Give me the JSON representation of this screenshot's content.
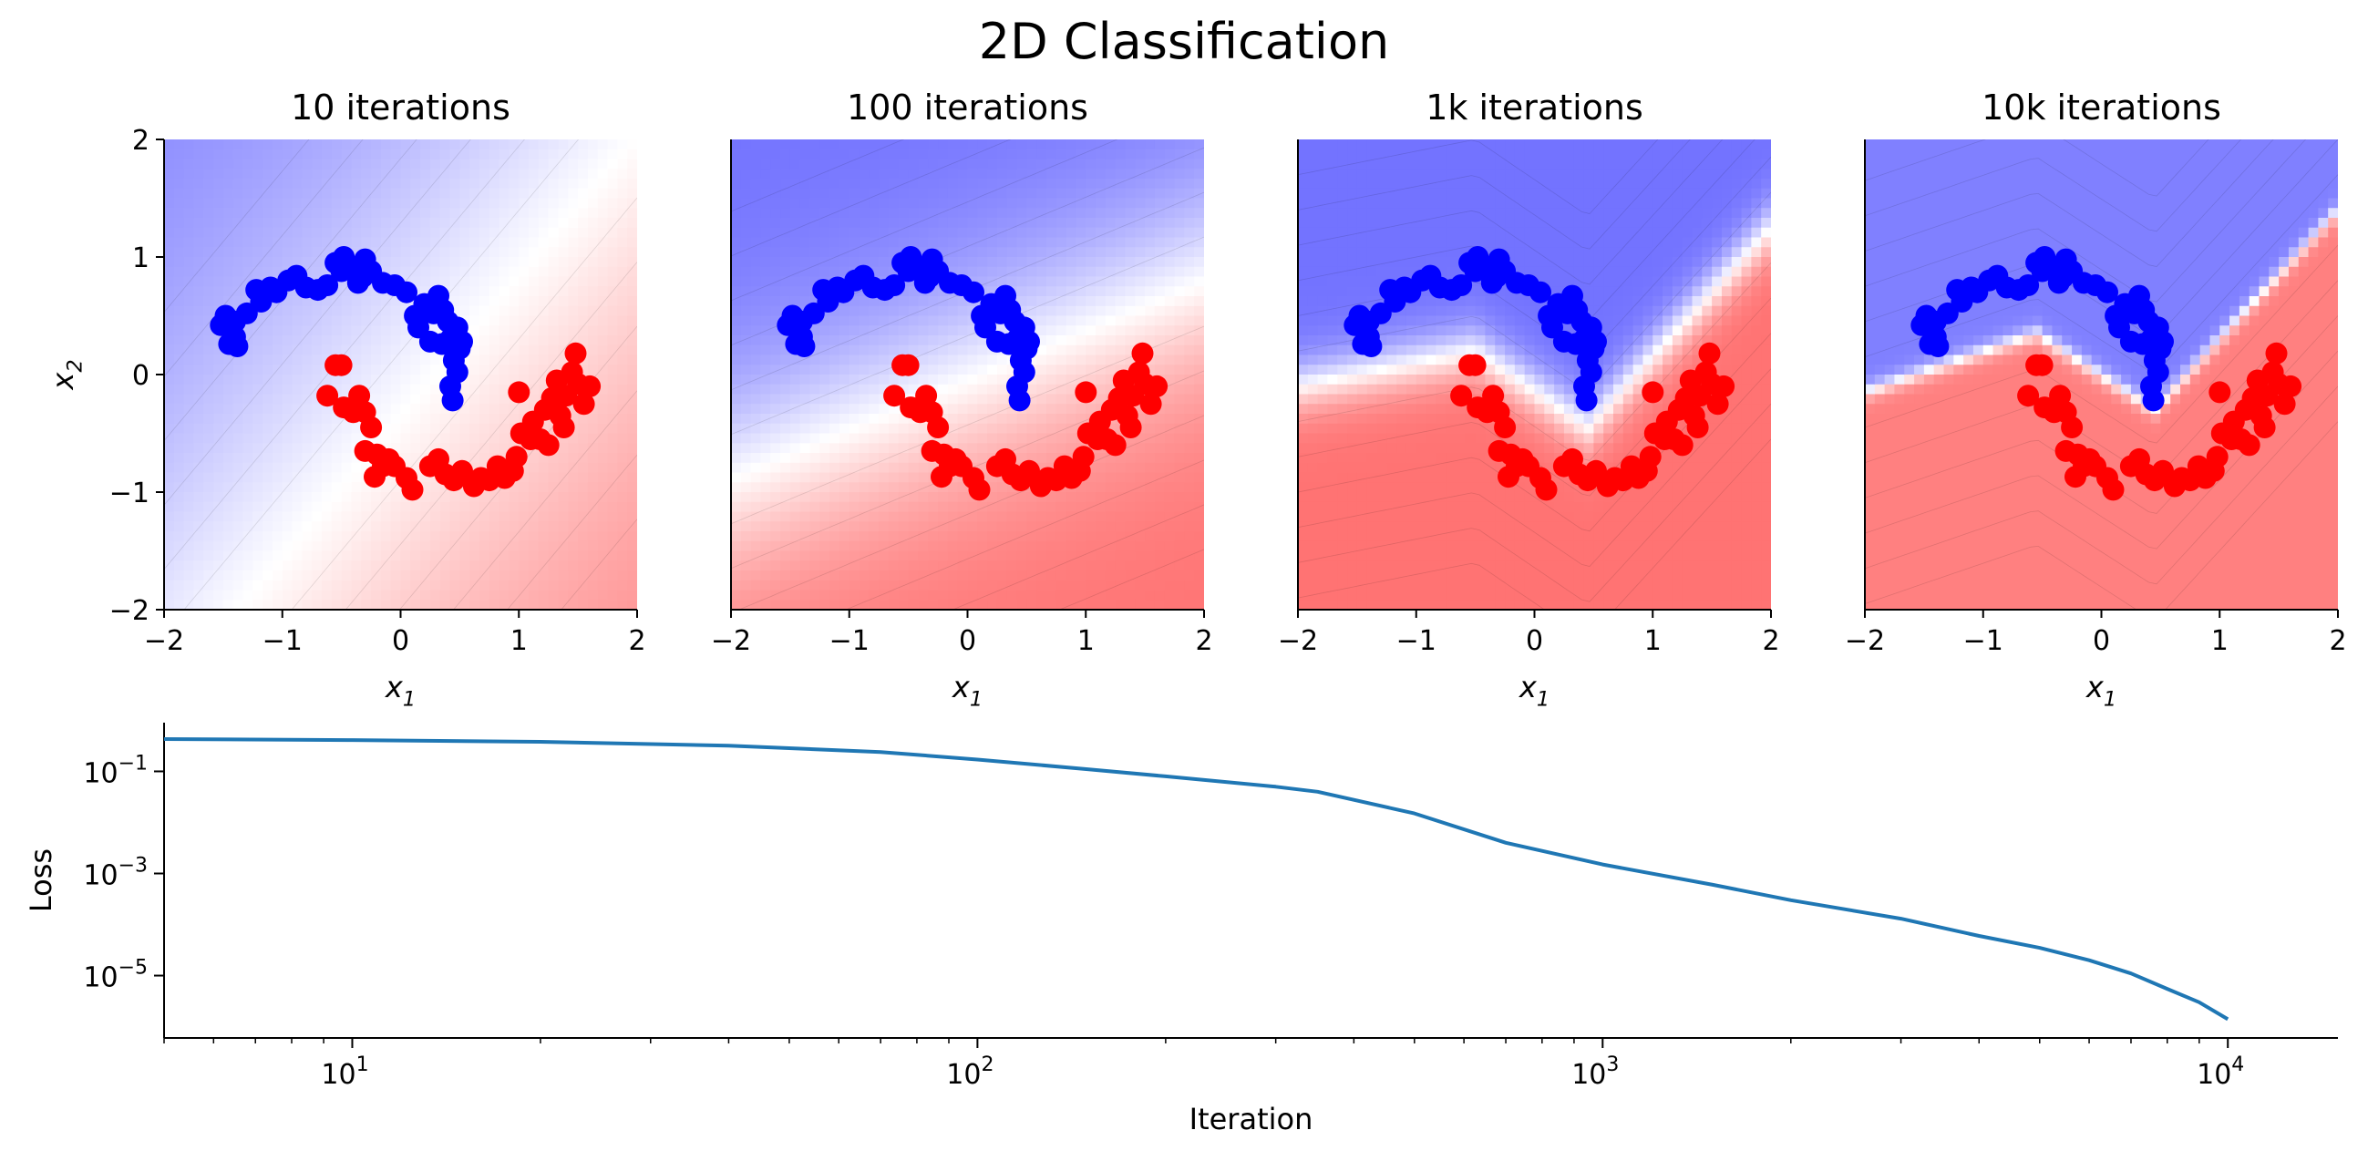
{
  "figure": {
    "suptitle": "2D Classification"
  },
  "chart_data": [
    {
      "type": "heatmap",
      "title": "10 iterations",
      "xlabel": "x1",
      "ylabel": "x2",
      "xlim": [
        -2,
        2
      ],
      "ylim": [
        -2,
        2
      ],
      "xticks": [
        -2,
        -1,
        0,
        1,
        2
      ],
      "yticks": [
        -2,
        -1,
        0,
        1,
        2
      ],
      "colormap": [
        "#0000ff",
        "#ffffff",
        "#ff0000"
      ],
      "boundary": {
        "kind": "linear",
        "slope": 1.2,
        "intercept": -0.35,
        "sharpness": 0.35,
        "max_level": 0.55
      }
    },
    {
      "type": "heatmap",
      "title": "100 iterations",
      "xlabel": "x1",
      "xlim": [
        -2,
        2
      ],
      "ylim": [
        -2,
        2
      ],
      "xticks": [
        -2,
        -1,
        0,
        1,
        2
      ],
      "colormap": [
        "#0000ff",
        "#ffffff",
        "#ff0000"
      ],
      "boundary": {
        "kind": "linear",
        "slope": 0.42,
        "intercept": -0.05,
        "sharpness": 0.9,
        "max_level": 0.55
      }
    },
    {
      "type": "heatmap",
      "title": "1k iterations",
      "xlabel": "x1",
      "xlim": [
        -2,
        2
      ],
      "ylim": [
        -2,
        2
      ],
      "xticks": [
        -2,
        -1,
        0,
        1,
        2
      ],
      "colormap": [
        "#0000ff",
        "#ffffff",
        "#ff0000"
      ],
      "boundary": {
        "kind": "vee",
        "points": [
          [
            -2,
            -0.1
          ],
          [
            -0.5,
            0.2
          ],
          [
            0.45,
            -0.45
          ],
          [
            2,
            1.25
          ]
        ],
        "sharpness": 3.5,
        "max_level": 0.55
      }
    },
    {
      "type": "heatmap",
      "title": "10k iterations",
      "xlabel": "x1",
      "xlim": [
        -2,
        2
      ],
      "ylim": [
        -2,
        2
      ],
      "xticks": [
        -2,
        -1,
        0,
        1,
        2
      ],
      "colormap": [
        "#0000ff",
        "#ffffff",
        "#ff0000"
      ],
      "boundary": {
        "kind": "vee",
        "points": [
          [
            -2,
            -0.15
          ],
          [
            -0.55,
            0.35
          ],
          [
            0.45,
            -0.3
          ],
          [
            2,
            1.4
          ]
        ],
        "sharpness": 12,
        "max_level": 0.5
      }
    },
    {
      "type": "line",
      "xlabel": "Iteration",
      "ylabel": "Loss",
      "xscale": "log",
      "yscale": "log",
      "xlim": [
        5,
        15000
      ],
      "ylim": [
        6e-07,
        0.9
      ],
      "xticks": [
        10,
        100,
        1000,
        10000
      ],
      "yticks": [
        0.1,
        0.001,
        1e-05
      ],
      "series": [
        {
          "color": "#1f77b4",
          "x": [
            5,
            10,
            20,
            40,
            70,
            100,
            150,
            200,
            300,
            350,
            500,
            700,
            1000,
            1500,
            2000,
            3000,
            4000,
            5000,
            6000,
            7000,
            8000,
            9000,
            10000
          ],
          "y": [
            0.43,
            0.41,
            0.38,
            0.32,
            0.24,
            0.17,
            0.11,
            0.08,
            0.05,
            0.04,
            0.015,
            0.004,
            0.0015,
            0.0006,
            0.0003,
            0.00013,
            6e-05,
            3.5e-05,
            2e-05,
            1.1e-05,
            5.5e-06,
            3e-06,
            1.4e-06
          ]
        }
      ]
    }
  ],
  "scatter_points": {
    "blue": {
      "color": "#0000ff",
      "points": [
        [
          -1.52,
          0.42
        ],
        [
          -1.48,
          0.5
        ],
        [
          -1.4,
          0.45
        ],
        [
          -1.45,
          0.26
        ],
        [
          -1.38,
          0.24
        ],
        [
          -1.3,
          0.52
        ],
        [
          -1.22,
          0.72
        ],
        [
          -1.18,
          0.62
        ],
        [
          -1.1,
          0.74
        ],
        [
          -1.05,
          0.7
        ],
        [
          -0.95,
          0.8
        ],
        [
          -0.88,
          0.84
        ],
        [
          -0.8,
          0.74
        ],
        [
          -0.7,
          0.72
        ],
        [
          -0.62,
          0.76
        ],
        [
          -0.5,
          0.88
        ],
        [
          -0.48,
          1.0
        ],
        [
          -0.42,
          0.92
        ],
        [
          -0.36,
          0.78
        ],
        [
          -0.3,
          0.98
        ],
        [
          -0.25,
          0.88
        ],
        [
          -0.32,
          0.83
        ],
        [
          -0.15,
          0.78
        ],
        [
          -0.05,
          0.76
        ],
        [
          0.05,
          0.7
        ],
        [
          0.12,
          0.5
        ],
        [
          0.2,
          0.6
        ],
        [
          0.28,
          0.52
        ],
        [
          0.32,
          0.67
        ],
        [
          0.36,
          0.55
        ],
        [
          0.4,
          0.45
        ],
        [
          0.42,
          0.3
        ],
        [
          0.48,
          0.4
        ],
        [
          0.5,
          0.22
        ],
        [
          0.45,
          0.12
        ],
        [
          0.48,
          0.02
        ],
        [
          0.42,
          -0.1
        ],
        [
          0.44,
          -0.22
        ],
        [
          0.35,
          0.26
        ],
        [
          0.25,
          0.28
        ],
        [
          -1.4,
          0.32
        ],
        [
          -0.55,
          0.95
        ],
        [
          0.15,
          0.4
        ],
        [
          0.52,
          0.28
        ]
      ]
    },
    "red": {
      "color": "#ff0000",
      "points": [
        [
          -0.55,
          0.08
        ],
        [
          -0.5,
          0.08
        ],
        [
          -0.62,
          -0.18
        ],
        [
          -0.48,
          -0.28
        ],
        [
          -0.4,
          -0.32
        ],
        [
          -0.35,
          -0.18
        ],
        [
          -0.3,
          -0.32
        ],
        [
          -0.25,
          -0.45
        ],
        [
          -0.3,
          -0.65
        ],
        [
          -0.2,
          -0.68
        ],
        [
          -0.15,
          -0.78
        ],
        [
          -0.1,
          -0.72
        ],
        [
          -0.22,
          -0.87
        ],
        [
          -0.05,
          -0.78
        ],
        [
          0.05,
          -0.88
        ],
        [
          0.1,
          -0.98
        ],
        [
          0.25,
          -0.78
        ],
        [
          0.32,
          -0.72
        ],
        [
          0.38,
          -0.85
        ],
        [
          0.45,
          -0.9
        ],
        [
          0.52,
          -0.82
        ],
        [
          0.62,
          -0.95
        ],
        [
          0.68,
          -0.88
        ],
        [
          0.75,
          -0.9
        ],
        [
          0.82,
          -0.78
        ],
        [
          0.88,
          -0.88
        ],
        [
          0.95,
          -0.82
        ],
        [
          0.98,
          -0.7
        ],
        [
          1.02,
          -0.5
        ],
        [
          1.1,
          -0.55
        ],
        [
          1.12,
          -0.4
        ],
        [
          1.18,
          -0.55
        ],
        [
          1.22,
          -0.3
        ],
        [
          1.28,
          -0.2
        ],
        [
          1.32,
          -0.05
        ],
        [
          1.35,
          -0.35
        ],
        [
          1.4,
          -0.18
        ],
        [
          1.45,
          0.02
        ],
        [
          1.48,
          0.18
        ],
        [
          1.5,
          -0.08
        ],
        [
          1.55,
          -0.25
        ],
        [
          1.6,
          -0.1
        ],
        [
          1.0,
          -0.15
        ],
        [
          1.38,
          -0.45
        ],
        [
          1.25,
          -0.6
        ]
      ]
    }
  }
}
